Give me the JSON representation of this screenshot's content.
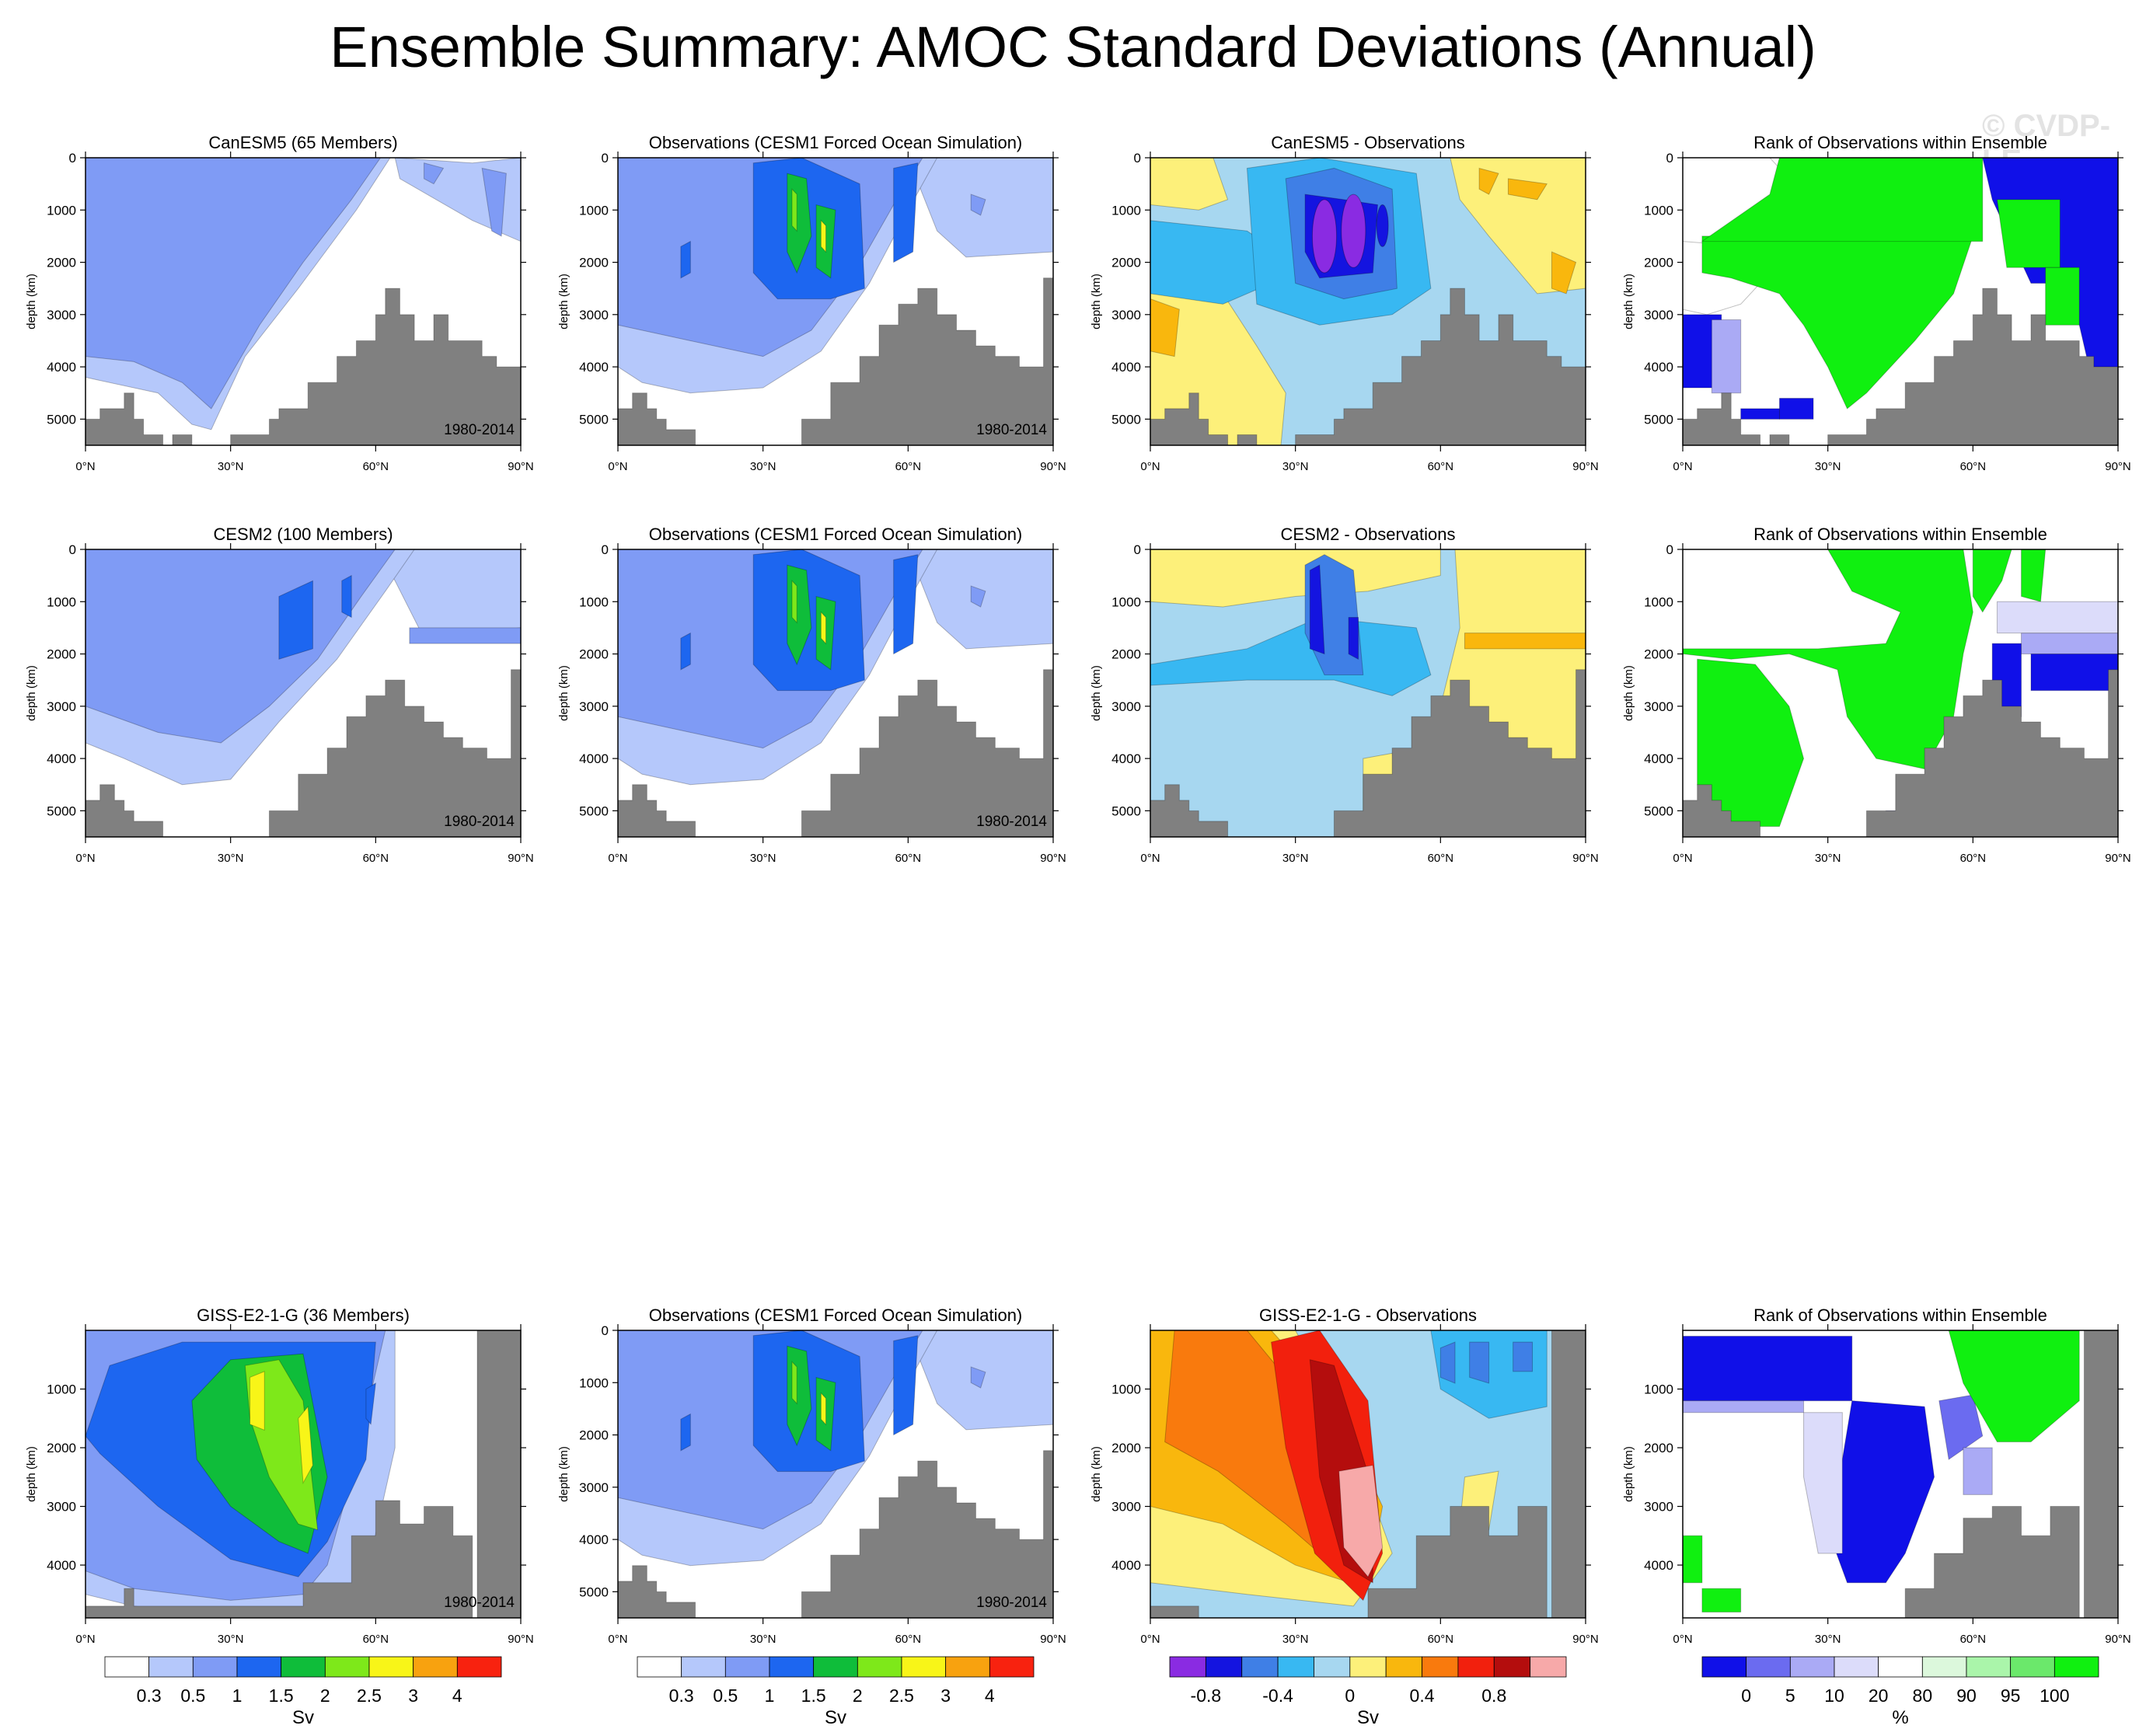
{
  "title": "Ensemble Summary: AMOC Standard Deviations (Annual)",
  "watermark": "© CVDP-LE",
  "chart_data": {
    "type": "heatmap",
    "shared": {
      "ylabel": "depth (km)",
      "xticks": [
        "0°N",
        "30°N",
        "60°N",
        "90°N"
      ],
      "xlim": [
        0,
        90
      ],
      "period": "1980-2014"
    },
    "rows": [
      {
        "panels": [
          {
            "kind": "model",
            "title": "CanESM5 (65 Members)",
            "ylim": [
              0,
              5500
            ],
            "yticks": [
              0,
              1000,
              2000,
              3000,
              4000,
              5000
            ],
            "period": "1980-2014"
          },
          {
            "kind": "obs",
            "title": "Observations (CESM1 Forced Ocean Simulation)",
            "ylim": [
              0,
              5500
            ],
            "yticks": [
              0,
              1000,
              2000,
              3000,
              4000,
              5000
            ],
            "period": "1980-2014"
          },
          {
            "kind": "diff",
            "title": "CanESM5 - Observations",
            "ylim": [
              0,
              5500
            ],
            "yticks": [
              0,
              1000,
              2000,
              3000,
              4000,
              5000
            ]
          },
          {
            "kind": "rank",
            "title": "Rank of Observations within Ensemble",
            "ylim": [
              0,
              5500
            ],
            "yticks": [
              0,
              1000,
              2000,
              3000,
              4000,
              5000
            ]
          }
        ]
      },
      {
        "panels": [
          {
            "kind": "model",
            "title": "CESM2 (100 Members)",
            "ylim": [
              0,
              5500
            ],
            "yticks": [
              0,
              1000,
              2000,
              3000,
              4000,
              5000
            ],
            "period": "1980-2014"
          },
          {
            "kind": "obs",
            "title": "Observations (CESM1 Forced Ocean Simulation)",
            "ylim": [
              0,
              5500
            ],
            "yticks": [
              0,
              1000,
              2000,
              3000,
              4000,
              5000
            ],
            "period": "1980-2014"
          },
          {
            "kind": "diff",
            "title": "CESM2 - Observations",
            "ylim": [
              0,
              5500
            ],
            "yticks": [
              0,
              1000,
              2000,
              3000,
              4000,
              5000
            ]
          },
          {
            "kind": "rank",
            "title": "Rank of Observations within Ensemble",
            "ylim": [
              0,
              5500
            ],
            "yticks": [
              0,
              1000,
              2000,
              3000,
              4000,
              5000
            ]
          }
        ]
      },
      {
        "panels": [
          {
            "kind": "giss",
            "title": "GISS-E2-1-G (36 Members)",
            "ylim": [
              0,
              4900
            ],
            "yticks": [
              1000,
              2000,
              3000,
              4000
            ],
            "period": "1980-2014"
          },
          {
            "kind": "obs",
            "title": "Observations (CESM1 Forced Ocean Simulation)",
            "ylim": [
              0,
              5500
            ],
            "yticks": [
              0,
              1000,
              2000,
              3000,
              4000,
              5000
            ],
            "period": "1980-2014"
          },
          {
            "kind": "gissdiff",
            "title": "GISS-E2-1-G - Observations",
            "ylim": [
              0,
              4900
            ],
            "yticks": [
              1000,
              2000,
              3000,
              4000
            ]
          },
          {
            "kind": "gissrank",
            "title": "Rank of Observations within Ensemble",
            "ylim": [
              0,
              4900
            ],
            "yticks": [
              1000,
              2000,
              3000,
              4000
            ]
          }
        ]
      }
    ],
    "colorbars": [
      {
        "unit": "Sv",
        "labels": [
          "0.3",
          "0.5",
          "1",
          "1.5",
          "2",
          "2.5",
          "3",
          "4"
        ],
        "colors": [
          "#ffffff",
          "#b5c8fb",
          "#7f9bf5",
          "#1d66f0",
          "#0fbd3a",
          "#7ee81a",
          "#f8f518",
          "#f8a20f",
          "#f8220f"
        ]
      },
      {
        "unit": "Sv",
        "labels": [
          "0.3",
          "0.5",
          "1",
          "1.5",
          "2",
          "2.5",
          "3",
          "4"
        ],
        "colors": [
          "#ffffff",
          "#b5c8fb",
          "#7f9bf5",
          "#1d66f0",
          "#0fbd3a",
          "#7ee81a",
          "#f8f518",
          "#f8a20f",
          "#f8220f"
        ]
      },
      {
        "unit": "Sv",
        "labels": [
          "-0.8",
          "-0.4",
          "0",
          "0.4",
          "0.8"
        ],
        "colors": [
          "#8a2be2",
          "#1414e0",
          "#3f7fe6",
          "#38b8f2",
          "#a7d7f0",
          "#fdf07a",
          "#f9b70d",
          "#f97a0d",
          "#f2200d",
          "#b40d0d",
          "#f7a9a9"
        ]
      },
      {
        "unit": "%",
        "labels": [
          "0",
          "5",
          "10",
          "20",
          "80",
          "90",
          "95",
          "100"
        ],
        "colors": [
          "#1010e8",
          "#6b6bf0",
          "#aaaaf5",
          "#dcdcfa",
          "#ffffff",
          "#dcf8dc",
          "#aaf5aa",
          "#6be86b",
          "#10f010"
        ]
      }
    ]
  }
}
